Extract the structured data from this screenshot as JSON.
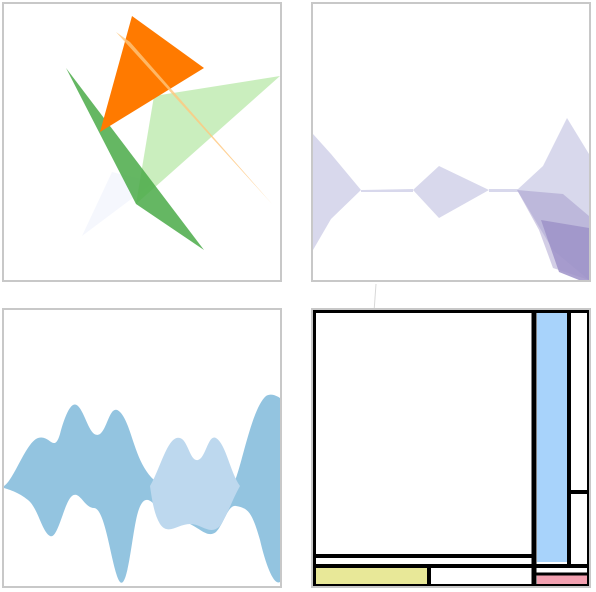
{
  "panels": [
    {
      "id": "triangle-composition",
      "triangles": [
        {
          "name": "faint-blue-triangle",
          "color": "#eef2fb",
          "opacity": 0.6
        },
        {
          "name": "light-green-triangle",
          "color": "#b8e8a8",
          "opacity": 0.75
        },
        {
          "name": "dark-green-triangle",
          "color": "#4aaa48",
          "opacity": 0.85
        },
        {
          "name": "orange-triangle",
          "color": "#ff7a00",
          "opacity": 1
        },
        {
          "name": "peach-sliver-triangle",
          "color": "#ffc77d",
          "opacity": 0.8
        }
      ]
    },
    {
      "id": "lavender-streamgraph",
      "colors": {
        "light": "#d4d4ea",
        "dark": "#9d92c8"
      }
    },
    {
      "id": "blue-streamgraph",
      "colors": {
        "primary": "#93c4e0",
        "secondary": "#bdd8ee"
      }
    },
    {
      "id": "mondrian-grid",
      "colors": {
        "blue": "#a8d3fb",
        "yellow": "#e8e898",
        "pink": "#f2a0b0",
        "line": "#000000"
      }
    }
  ]
}
